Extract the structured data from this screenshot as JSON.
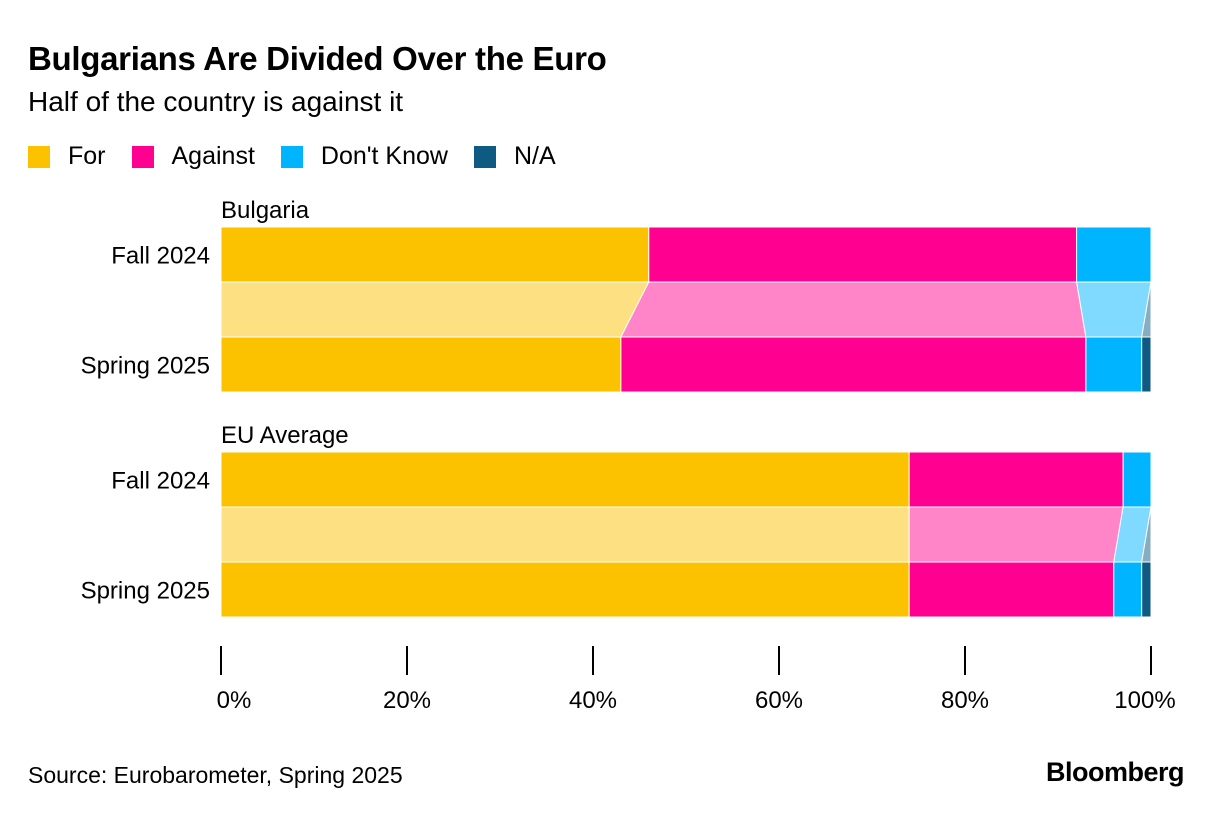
{
  "title": "Bulgarians Are Divided Over the Euro",
  "subtitle": "Half of the country is against it",
  "source": "Source: Eurobarometer, Spring 2025",
  "brand": "Bloomberg",
  "colors": {
    "For": "#fcc200",
    "Against": "#ff0091",
    "Don't Know": "#00b4ff",
    "N/A": "#0f5a82",
    "For_light": "#fde081",
    "Against_light": "#ff84c8",
    "Don't Know_light": "#80d9ff",
    "N/A_light": "#87adc1"
  },
  "legend": [
    "For",
    "Against",
    "Don't Know",
    "N/A"
  ],
  "chart_data": {
    "type": "bar",
    "orientation": "horizontal",
    "stacked": true,
    "xlim": [
      0,
      100
    ],
    "xticks": [
      "0%",
      "20%",
      "40%",
      "60%",
      "80%",
      "100%"
    ],
    "groups": [
      {
        "name": "Bulgaria",
        "categories": [
          "Fall 2024",
          "Spring 2025"
        ],
        "series": [
          {
            "name": "For",
            "values": [
              46,
              43
            ]
          },
          {
            "name": "Against",
            "values": [
              46,
              50
            ]
          },
          {
            "name": "Don't Know",
            "values": [
              8,
              6
            ]
          },
          {
            "name": "N/A",
            "values": [
              0,
              1
            ]
          }
        ]
      },
      {
        "name": "EU Average",
        "categories": [
          "Fall 2024",
          "Spring 2025"
        ],
        "series": [
          {
            "name": "For",
            "values": [
              74,
              74
            ]
          },
          {
            "name": "Against",
            "values": [
              23,
              22
            ]
          },
          {
            "name": "Don't Know",
            "values": [
              3,
              3
            ]
          },
          {
            "name": "N/A",
            "values": [
              0,
              1
            ]
          }
        ]
      }
    ]
  }
}
